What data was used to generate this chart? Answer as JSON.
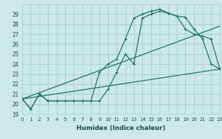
{
  "xlabel": "Humidex (Indice chaleur)",
  "background_color": "#cce8e8",
  "grid_color": "#aacece",
  "line_color": "#1a7060",
  "xlim": [
    0,
    23
  ],
  "ylim": [
    19,
    30
  ],
  "yticks": [
    19,
    20,
    21,
    22,
    23,
    24,
    25,
    26,
    27,
    28,
    29
  ],
  "xticks": [
    0,
    1,
    2,
    3,
    4,
    5,
    6,
    7,
    8,
    9,
    10,
    11,
    12,
    13,
    14,
    15,
    16,
    17,
    18,
    19,
    20,
    21,
    22,
    23
  ],
  "series1_x": [
    0,
    1,
    2,
    3,
    4,
    5,
    6,
    7,
    8,
    9,
    10,
    11,
    12,
    13,
    14,
    15,
    16,
    17,
    18,
    19,
    20,
    21,
    22,
    23
  ],
  "series1_y": [
    20.5,
    19.5,
    21.0,
    20.3,
    20.3,
    20.3,
    20.3,
    20.3,
    20.3,
    23.2,
    24.0,
    24.5,
    26.5,
    28.6,
    29.0,
    29.3,
    29.5,
    29.1,
    28.8,
    28.7,
    27.5,
    26.5,
    24.0,
    23.5
  ],
  "series2_x": [
    0,
    1,
    2,
    3,
    4,
    5,
    6,
    7,
    8,
    9,
    10,
    11,
    12,
    13,
    14,
    15,
    16,
    17,
    18,
    19,
    20,
    21,
    22,
    23
  ],
  "series2_y": [
    20.5,
    19.5,
    21.0,
    20.3,
    20.3,
    20.3,
    20.3,
    20.3,
    20.3,
    20.3,
    21.5,
    23.2,
    25.0,
    24.0,
    28.6,
    29.0,
    29.3,
    29.1,
    28.8,
    27.5,
    27.0,
    26.8,
    26.5,
    23.5
  ],
  "series3_x": [
    0,
    23
  ],
  "series3_y": [
    20.5,
    23.5
  ],
  "series4_x": [
    0,
    23
  ],
  "series4_y": [
    20.5,
    27.8
  ]
}
